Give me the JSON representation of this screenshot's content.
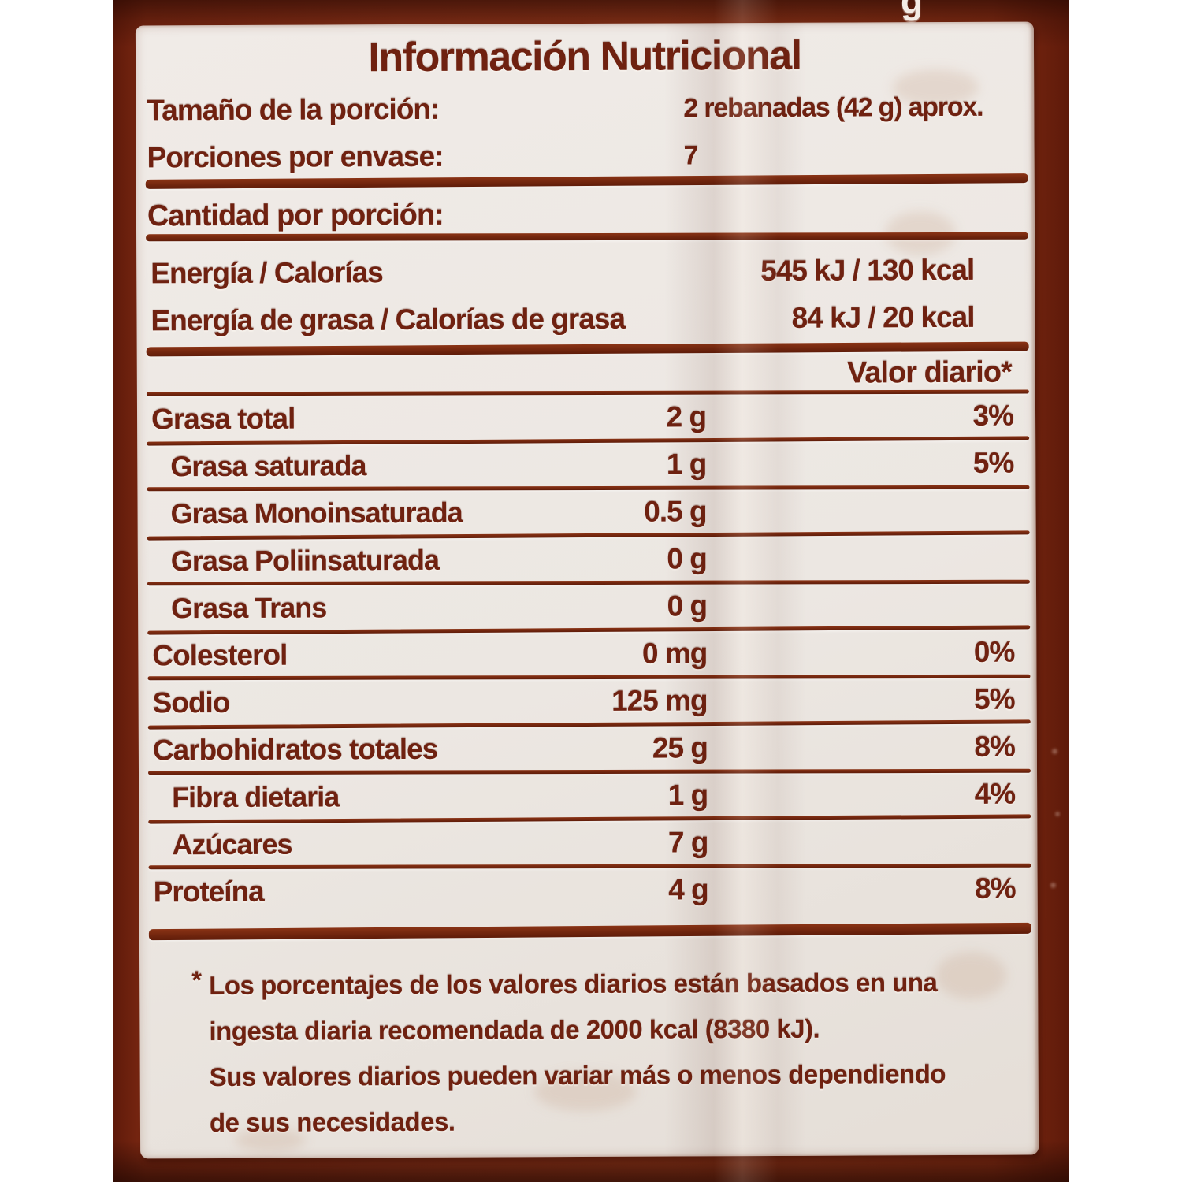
{
  "package": {
    "top_text_fragment": "g",
    "colors": {
      "package_brown": "#8a3118",
      "package_dark_band": "#5f1a0a",
      "label_background": "#ece7e2",
      "ink_brown": "#6f2110"
    }
  },
  "label": {
    "title": "Información Nutricional",
    "serving_rows": [
      {
        "name": "Tamaño de la porción:",
        "value": "2 rebanadas (42 g) aprox."
      },
      {
        "name": "Porciones por envase:",
        "value": "7"
      }
    ],
    "amount_per_serving_heading": "Cantidad por porción:",
    "energy_rows": [
      {
        "name": "Energía / Calorías",
        "value": "545 kJ / 130 kcal"
      },
      {
        "name": "Energía de grasa / Calorías de grasa",
        "value": "84 kJ / 20 kcal"
      }
    ],
    "daily_value_header": "Valor diario*",
    "nutrients": [
      {
        "name": "Grasa total",
        "amount": "2 g",
        "dv": "3%",
        "indent": false
      },
      {
        "name": "Grasa saturada",
        "amount": "1 g",
        "dv": "5%",
        "indent": true
      },
      {
        "name": "Grasa Monoinsaturada",
        "amount": "0.5 g",
        "dv": "",
        "indent": true
      },
      {
        "name": "Grasa Poliinsaturada",
        "amount": "0 g",
        "dv": "",
        "indent": true
      },
      {
        "name": "Grasa Trans",
        "amount": "0 g",
        "dv": "",
        "indent": true
      },
      {
        "name": "Colesterol",
        "amount": "0 mg",
        "dv": "0%",
        "indent": false
      },
      {
        "name": "Sodio",
        "amount": "125 mg",
        "dv": "5%",
        "indent": false
      },
      {
        "name": "Carbohidratos totales",
        "amount": "25 g",
        "dv": "8%",
        "indent": false
      },
      {
        "name": "Fibra dietaria",
        "amount": "1 g",
        "dv": "4%",
        "indent": true
      },
      {
        "name": "Azúcares",
        "amount": "7 g",
        "dv": "",
        "indent": true
      },
      {
        "name": "Proteína",
        "amount": "4 g",
        "dv": "8%",
        "indent": false
      }
    ],
    "footnote": {
      "asterisk": "*",
      "lines": [
        "Los porcentajes de los valores diarios están basados en una",
        "ingesta diaria recomendada de 2000 kcal (8380 kJ).",
        "Sus valores diarios pueden variar más o menos dependiendo",
        "de sus necesidades."
      ]
    }
  }
}
